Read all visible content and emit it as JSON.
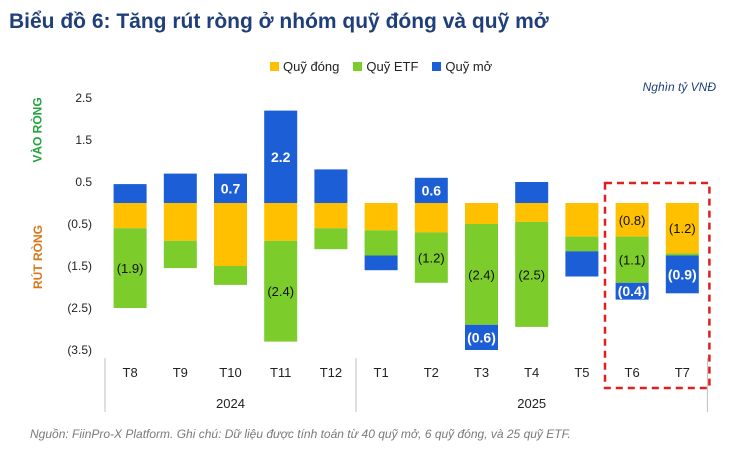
{
  "title": "Biểu đồ 6: Tăng rút ròng ở nhóm quỹ đóng và quỹ mở",
  "unit": "Nghìn tỷ VNĐ",
  "side_labels": {
    "inflow": "VÀO RÒNG",
    "outflow": "RÚT RÒNG"
  },
  "source": "Nguồn: FiinPro-X Platform. Ghi chú: Dữ liệu được tính toán từ 40 quỹ mở, 6 quỹ đóng, và 25 quỹ ETF.",
  "colors": {
    "closed": "#ffc000",
    "etf": "#7ccc2c",
    "open": "#1c5ed6",
    "highlight": "#e02020"
  },
  "chart_data": {
    "type": "bar",
    "stacked": true,
    "categories": [
      "T8",
      "T9",
      "T10",
      "T11",
      "T12",
      "T1",
      "T2",
      "T3",
      "T4",
      "T5",
      "T6",
      "T7"
    ],
    "groups": [
      {
        "label": "2024",
        "categories": [
          "T8",
          "T9",
          "T10",
          "T11",
          "T12"
        ]
      },
      {
        "label": "2025",
        "categories": [
          "T1",
          "T2",
          "T3",
          "T4",
          "T5",
          "T6",
          "T7"
        ]
      }
    ],
    "series": [
      {
        "name": "Quỹ đóng",
        "key": "closed",
        "values": [
          -0.6,
          -0.9,
          -1.5,
          -0.9,
          -0.6,
          -0.65,
          -0.7,
          -0.5,
          -0.45,
          -0.8,
          -0.8,
          -1.2
        ]
      },
      {
        "name": "Quỹ ETF",
        "key": "etf",
        "values": [
          -1.9,
          -0.65,
          -0.45,
          -2.4,
          -0.5,
          -0.6,
          -1.2,
          -2.4,
          -2.5,
          -0.35,
          -1.1,
          -0.05
        ]
      },
      {
        "name": "Quỹ mở",
        "key": "open",
        "values": [
          0.45,
          0.7,
          0.7,
          2.2,
          0.8,
          -0.35,
          0.6,
          -0.6,
          0.5,
          -0.6,
          -0.4,
          -0.9
        ]
      }
    ],
    "data_labels": [
      {
        "category": "T8",
        "series": "etf",
        "text": "(1.9)"
      },
      {
        "category": "T10",
        "series": "open",
        "text": "0.7"
      },
      {
        "category": "T11",
        "series": "open",
        "text": "2.2"
      },
      {
        "category": "T11",
        "series": "etf",
        "text": "(2.4)"
      },
      {
        "category": "T2",
        "series": "open",
        "text": "0.6"
      },
      {
        "category": "T2",
        "series": "etf",
        "text": "(1.2)"
      },
      {
        "category": "T3",
        "series": "etf",
        "text": "(2.4)"
      },
      {
        "category": "T3",
        "series": "open",
        "text": "(0.6)"
      },
      {
        "category": "T4",
        "series": "etf",
        "text": "(2.5)"
      },
      {
        "category": "T6",
        "series": "closed",
        "text": "(0.8)"
      },
      {
        "category": "T6",
        "series": "etf",
        "text": "(1.1)"
      },
      {
        "category": "T6",
        "series": "open",
        "text": "(0.4)"
      },
      {
        "category": "T7",
        "series": "closed",
        "text": "(1.2)"
      },
      {
        "category": "T7",
        "series": "open",
        "text": "(0.9)"
      }
    ],
    "y_ticks": [
      2.5,
      1.5,
      0.5,
      -0.5,
      -1.5,
      -2.5,
      -3.5
    ],
    "y_tick_labels": [
      "2.5",
      "1.5",
      "0.5",
      "(0.5)",
      "(1.5)",
      "(2.5)",
      "(3.5)"
    ],
    "ylim": [
      -3.5,
      2.5
    ],
    "highlight_categories": [
      "T6",
      "T7"
    ],
    "legend_position": "top-center"
  }
}
